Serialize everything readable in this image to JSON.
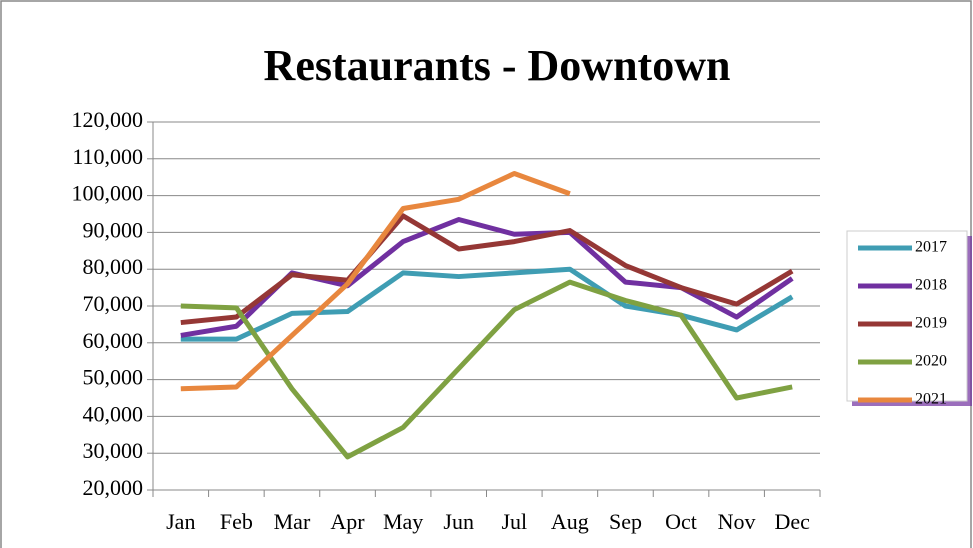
{
  "chart_data": {
    "type": "line",
    "title": "Restaurants - Downtown",
    "categories": [
      "Jan",
      "Feb",
      "Mar",
      "Apr",
      "May",
      "Jun",
      "Jul",
      "Aug",
      "Sep",
      "Oct",
      "Nov",
      "Dec"
    ],
    "series": [
      {
        "name": "2017",
        "color": "#3f9db3",
        "values": [
          61000,
          61000,
          68000,
          68500,
          79000,
          78000,
          79000,
          80000,
          70000,
          67500,
          63500,
          72500
        ]
      },
      {
        "name": "2018",
        "color": "#7030a0",
        "values": [
          62000,
          64500,
          79000,
          75500,
          87500,
          93500,
          89500,
          90000,
          76500,
          75000,
          67000,
          77500
        ]
      },
      {
        "name": "2019",
        "color": "#953735",
        "values": [
          65500,
          67000,
          78500,
          77000,
          94500,
          85500,
          87500,
          90500,
          81000,
          75000,
          70500,
          79500
        ]
      },
      {
        "name": "2020",
        "color": "#7fa142",
        "values": [
          70000,
          69500,
          47500,
          29000,
          37000,
          53000,
          69000,
          76500,
          71500,
          67500,
          45000,
          48000
        ]
      },
      {
        "name": "2021",
        "color": "#e8873e",
        "values": [
          47500,
          48000,
          62000,
          76000,
          96500,
          99000,
          106000,
          100500,
          null,
          null,
          null,
          null
        ]
      }
    ],
    "ylim": [
      20000,
      120000
    ],
    "yticks": [
      {
        "value": 20000,
        "label": "20,000"
      },
      {
        "value": 30000,
        "label": "30,000"
      },
      {
        "value": 40000,
        "label": "40,000"
      },
      {
        "value": 50000,
        "label": "50,000"
      },
      {
        "value": 60000,
        "label": "60,000"
      },
      {
        "value": 70000,
        "label": "70,000"
      },
      {
        "value": 80000,
        "label": "80,000"
      },
      {
        "value": 90000,
        "label": "90,000"
      },
      {
        "value": 100000,
        "label": "100,000"
      },
      {
        "value": 110000,
        "label": "110,000"
      },
      {
        "value": 120000,
        "label": "120,000"
      }
    ],
    "grid": true,
    "legend": "right"
  }
}
